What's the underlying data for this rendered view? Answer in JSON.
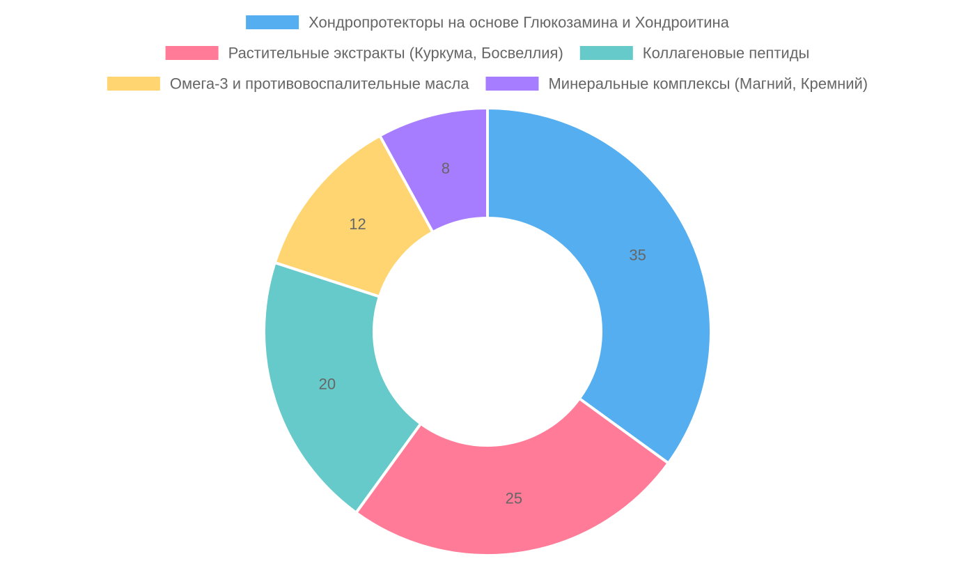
{
  "chart_data": {
    "type": "pie",
    "variant": "doughnut",
    "title": "",
    "legend_position": "top",
    "start_angle": "top, clockwise",
    "series": [
      {
        "values": [
          35,
          25,
          20,
          12,
          8
        ]
      }
    ],
    "categories": [
      "Хондропротекторы на основе Глюкозамина и Хондроитина",
      "Растительные экстракты (Куркума, Босвеллия)",
      "Коллагеновые пептиды",
      "Омега-3 и противовоспалительные масла",
      "Минеральные комплексы (Магний, Кремний)"
    ],
    "colors": [
      "#54AEEF",
      "#FF7B97",
      "#67CACA",
      "#FFD572",
      "#A77DFF"
    ],
    "data_labels": [
      "35",
      "25",
      "20",
      "12",
      "8"
    ]
  }
}
